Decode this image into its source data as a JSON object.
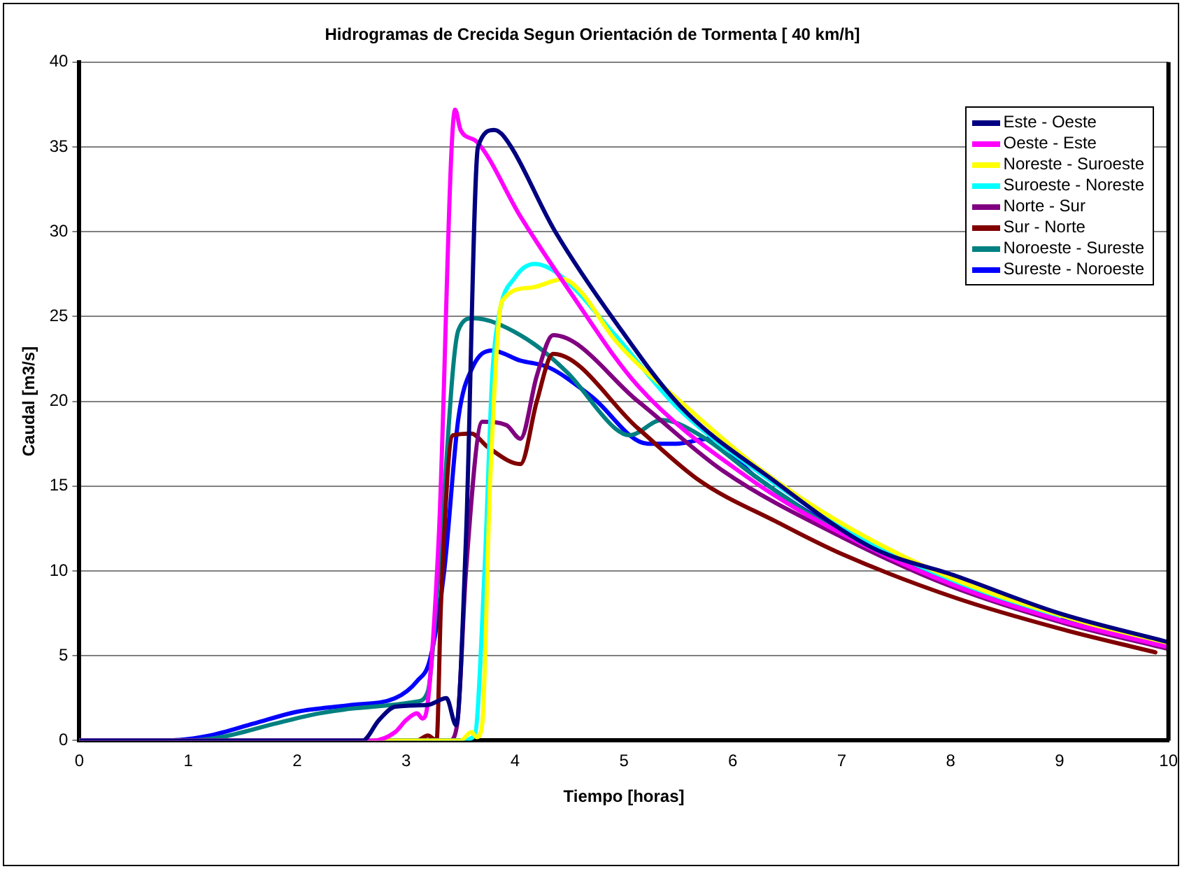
{
  "chart_data": {
    "type": "line",
    "title": "Hidrogramas de Crecida Segun Orientación de Tormenta [ 40 km/h]",
    "xlabel": "Tiempo [horas]",
    "ylabel": "Caudal [m3/s]",
    "xlim": [
      0,
      10
    ],
    "xticks": [
      0,
      1,
      2,
      3,
      4,
      5,
      6,
      7,
      8,
      9,
      10
    ],
    "ylim": [
      0,
      40
    ],
    "yticks": [
      0,
      5,
      10,
      15,
      20,
      25,
      30,
      35,
      40
    ],
    "grid": "y",
    "legend": "top right",
    "marker": "none",
    "line_style": "solid",
    "series": [
      {
        "name": "Este - Oeste",
        "color": "#000080",
        "x": [
          0,
          2.6,
          2.75,
          2.9,
          3.2,
          3.37,
          3.46,
          3.55,
          3.66,
          3.81,
          3.9,
          4.37,
          4.92,
          5.52,
          6.36,
          7.27,
          8.05,
          9.0,
          10
        ],
        "values": [
          0,
          0,
          1.2,
          2.0,
          2.1,
          2.5,
          0.9,
          12,
          35,
          36,
          35.6,
          30,
          24.7,
          19.7,
          15.4,
          11.4,
          9.7,
          7.5,
          5.8
        ]
      },
      {
        "name": "Oeste - Este",
        "color": "#ff00ff",
        "x": [
          0,
          2.7,
          2.9,
          3.0,
          3.1,
          3.15,
          3.2,
          3.3,
          3.45,
          3.5,
          3.65,
          4.05,
          4.48,
          5.13,
          6.14,
          7,
          8.05,
          9,
          10
        ],
        "values": [
          0,
          0,
          0.5,
          1.2,
          1.6,
          1.3,
          2.3,
          12,
          37.2,
          36,
          35.3,
          30.9,
          26.7,
          20.9,
          15.5,
          12.2,
          9.1,
          7.1,
          5.5
        ]
      },
      {
        "name": "Noreste - Suroeste",
        "color": "#ffff00",
        "x": [
          0,
          3.5,
          3.6,
          3.65,
          3.7,
          3.77,
          3.88,
          4.14,
          4.44,
          4.6,
          4.92,
          5.57,
          6.23,
          7,
          8,
          9,
          10
        ],
        "values": [
          0,
          0,
          0.5,
          0.2,
          1,
          15,
          25.9,
          26.7,
          27.2,
          26.5,
          23.6,
          19.7,
          16.1,
          12.8,
          9.6,
          7.4,
          5.6
        ]
      },
      {
        "name": "Suroeste - Noreste",
        "color": "#00ffff",
        "x": [
          0,
          3.5,
          3.63,
          3.72,
          3.79,
          3.85,
          4.0,
          4.18,
          4.4,
          4.92,
          5.48,
          6.2,
          7,
          8,
          9
        ],
        "values": [
          0,
          0,
          0.3,
          10,
          21.4,
          25,
          27.3,
          28.1,
          27.5,
          23.9,
          19.7,
          16,
          12.6,
          9.5,
          7.3
        ]
      },
      {
        "name": "Norte - Sur",
        "color": "#800080",
        "x": [
          0,
          3.4,
          3.47,
          3.55,
          3.7,
          3.92,
          4.05,
          4.2,
          4.35,
          5.13,
          5.91,
          7,
          8,
          9,
          10
        ],
        "values": [
          0,
          0,
          1,
          10,
          18.8,
          18.6,
          17.8,
          21.5,
          23.9,
          20,
          15.9,
          12,
          9.1,
          7,
          5.4
        ]
      },
      {
        "name": "Sur - Norte",
        "color": "#800000",
        "x": [
          0,
          3.1,
          3.2,
          3.28,
          3.32,
          3.43,
          3.6,
          3.75,
          4.05,
          4.2,
          4.35,
          5.13,
          5.7,
          6.4,
          7,
          8.05,
          9,
          9.88
        ],
        "values": [
          0,
          0,
          0.3,
          0,
          8,
          18,
          18.1,
          17.3,
          16.3,
          20,
          22.8,
          18.4,
          15.3,
          12.9,
          11,
          8.4,
          6.6,
          5.2
        ]
      },
      {
        "name": "Noroeste - Sureste",
        "color": "#008080",
        "x": [
          0,
          1.0,
          1.3,
          1.8,
          2.2,
          2.7,
          3.1,
          3.2,
          3.3,
          3.48,
          3.61,
          4.05,
          4.48,
          4.92,
          5.05,
          5.35,
          5.7,
          6.2,
          7,
          8
        ],
        "values": [
          0,
          0,
          0.2,
          1,
          1.6,
          2,
          2.3,
          2.9,
          10,
          24.2,
          24.9,
          23.9,
          21.7,
          18.4,
          18,
          18.9,
          18,
          15.6,
          12.2,
          9.2
        ]
      },
      {
        "name": "Sureste - Noroeste",
        "color": "#0000ff",
        "x": [
          0,
          0.8,
          1.2,
          1.6,
          2.0,
          2.5,
          2.9,
          3.1,
          3.22,
          3.35,
          3.48,
          3.61,
          3.79,
          4.05,
          4.31,
          4.7,
          5.22,
          5.48,
          5.78,
          6.2,
          7,
          8,
          9,
          10
        ],
        "values": [
          0,
          0,
          0.3,
          1,
          1.7,
          2.1,
          2.5,
          3.5,
          4.8,
          10,
          19,
          22,
          23,
          22.4,
          22,
          20.3,
          17.5,
          17.5,
          17.8,
          15.6,
          12.3,
          9.3,
          7.2,
          5.5
        ]
      }
    ]
  }
}
